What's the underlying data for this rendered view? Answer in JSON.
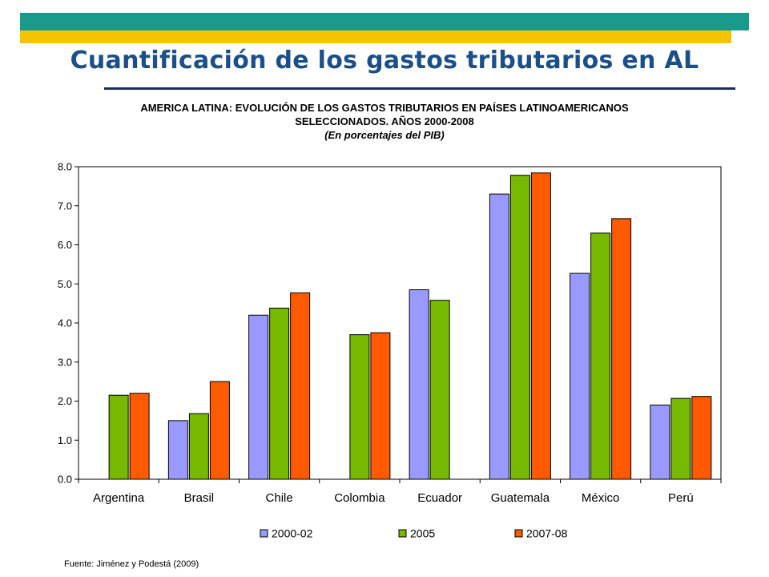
{
  "slide": {
    "title": "Cuantificación de los gastos tributarios en AL",
    "source": "Fuente: Jiménez y Podestá (2009)",
    "colors": {
      "banner_top": "#1a9a8a",
      "banner_bottom": "#f5c400",
      "title": "#1b4f8a",
      "rule": "#1a2a6c"
    }
  },
  "chart_data": {
    "type": "bar",
    "title_line1": "AMERICA LATINA: EVOLUCIÓN DE LOS GASTOS TRIBUTARIOS EN PAÍSES LATINOAMERICANOS",
    "title_line2": "SELECCIONADOS. AÑOS 2000-2008",
    "subtitle": "(En porcentajes del PIB)",
    "xlabel": "",
    "ylabel": "",
    "ylim": [
      0,
      8
    ],
    "yticks": [
      "0.0",
      "1.0",
      "2.0",
      "3.0",
      "4.0",
      "5.0",
      "6.0",
      "7.0",
      "8.0"
    ],
    "categories": [
      "Argentina",
      "Brasil",
      "Chile",
      "Colombia",
      "Ecuador",
      "Guatemala",
      "México",
      "Perú"
    ],
    "series": [
      {
        "name": "2000-02",
        "color": "#9999ff",
        "values": [
          null,
          1.5,
          4.2,
          null,
          4.85,
          7.3,
          5.27,
          1.9
        ]
      },
      {
        "name": "2005",
        "color": "#77b800",
        "values": [
          2.15,
          1.68,
          4.38,
          3.7,
          4.58,
          7.78,
          6.3,
          2.07
        ]
      },
      {
        "name": "2007-08",
        "color": "#ff5a00",
        "values": [
          2.2,
          2.5,
          4.77,
          3.75,
          null,
          7.84,
          6.67,
          2.12
        ]
      }
    ],
    "grid": false,
    "legend_position": "bottom"
  }
}
